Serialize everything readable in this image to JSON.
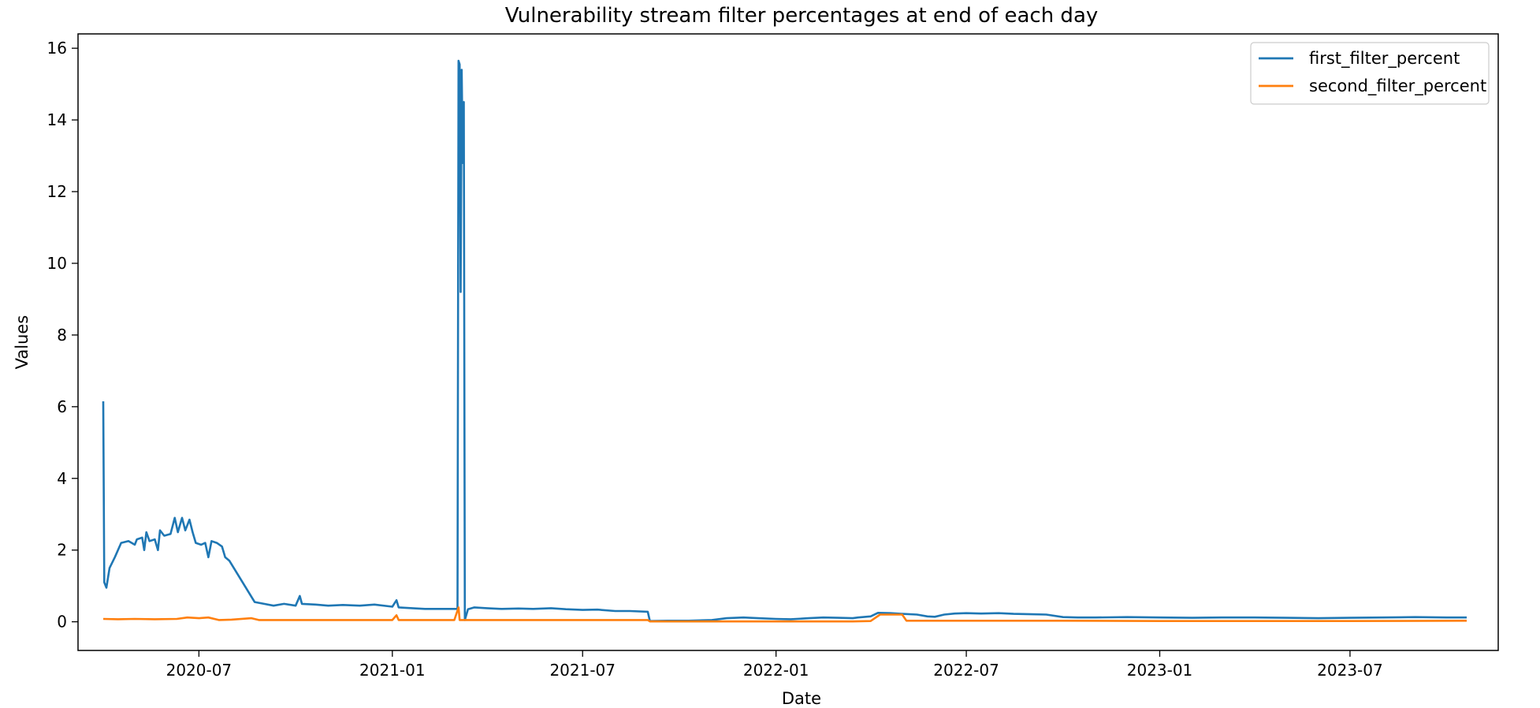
{
  "chart_data": {
    "type": "line",
    "title": "Vulnerability stream filter percentages at end of each day",
    "xlabel": "Date",
    "ylabel": "Values",
    "x_axis_type": "date",
    "xlim": [
      "2020-03-08",
      "2023-11-19"
    ],
    "ylim": [
      -0.8,
      16.4
    ],
    "x_ticks": [
      {
        "date": "2020-07-01",
        "label": "2020-07"
      },
      {
        "date": "2021-01-01",
        "label": "2021-01"
      },
      {
        "date": "2021-07-01",
        "label": "2021-07"
      },
      {
        "date": "2022-01-01",
        "label": "2022-01"
      },
      {
        "date": "2022-07-01",
        "label": "2022-07"
      },
      {
        "date": "2023-01-01",
        "label": "2023-01"
      },
      {
        "date": "2023-07-01",
        "label": "2023-07"
      }
    ],
    "y_ticks": [
      0,
      2,
      4,
      6,
      8,
      10,
      12,
      14,
      16
    ],
    "grid": false,
    "legend_position": "top-right",
    "colors": {
      "first_filter_percent": "#1f77b4",
      "second_filter_percent": "#ff7f0e"
    },
    "series": [
      {
        "name": "first_filter_percent",
        "points": [
          [
            "2020-04-01",
            6.15
          ],
          [
            "2020-04-02",
            1.1
          ],
          [
            "2020-04-04",
            0.95
          ],
          [
            "2020-04-07",
            1.5
          ],
          [
            "2020-04-12",
            1.8
          ],
          [
            "2020-04-18",
            2.2
          ],
          [
            "2020-04-25",
            2.25
          ],
          [
            "2020-05-01",
            2.15
          ],
          [
            "2020-05-03",
            2.3
          ],
          [
            "2020-05-08",
            2.35
          ],
          [
            "2020-05-10",
            2.0
          ],
          [
            "2020-05-12",
            2.5
          ],
          [
            "2020-05-15",
            2.25
          ],
          [
            "2020-05-20",
            2.3
          ],
          [
            "2020-05-23",
            2.0
          ],
          [
            "2020-05-25",
            2.55
          ],
          [
            "2020-05-29",
            2.4
          ],
          [
            "2020-06-04",
            2.45
          ],
          [
            "2020-06-08",
            2.9
          ],
          [
            "2020-06-11",
            2.5
          ],
          [
            "2020-06-15",
            2.9
          ],
          [
            "2020-06-18",
            2.55
          ],
          [
            "2020-06-22",
            2.85
          ],
          [
            "2020-06-25",
            2.5
          ],
          [
            "2020-06-28",
            2.2
          ],
          [
            "2020-07-03",
            2.15
          ],
          [
            "2020-07-07",
            2.2
          ],
          [
            "2020-07-10",
            1.8
          ],
          [
            "2020-07-13",
            2.25
          ],
          [
            "2020-07-18",
            2.2
          ],
          [
            "2020-07-23",
            2.1
          ],
          [
            "2020-07-26",
            1.8
          ],
          [
            "2020-07-30",
            1.7
          ],
          [
            "2020-08-23",
            0.55
          ],
          [
            "2020-09-01",
            0.5
          ],
          [
            "2020-09-10",
            0.45
          ],
          [
            "2020-09-20",
            0.5
          ],
          [
            "2020-10-01",
            0.45
          ],
          [
            "2020-10-05",
            0.72
          ],
          [
            "2020-10-07",
            0.5
          ],
          [
            "2020-10-20",
            0.48
          ],
          [
            "2020-11-01",
            0.45
          ],
          [
            "2020-11-15",
            0.47
          ],
          [
            "2020-12-01",
            0.45
          ],
          [
            "2020-12-15",
            0.48
          ],
          [
            "2021-01-01",
            0.42
          ],
          [
            "2021-01-05",
            0.6
          ],
          [
            "2021-01-07",
            0.4
          ],
          [
            "2021-01-20",
            0.38
          ],
          [
            "2021-02-01",
            0.36
          ],
          [
            "2021-02-15",
            0.36
          ],
          [
            "2021-03-01",
            0.36
          ],
          [
            "2021-03-04",
            0.36
          ],
          [
            "2021-03-05",
            15.65
          ],
          [
            "2021-03-06",
            15.55
          ],
          [
            "2021-03-07",
            9.2
          ],
          [
            "2021-03-08",
            15.4
          ],
          [
            "2021-03-09",
            12.8
          ],
          [
            "2021-03-10",
            14.5
          ],
          [
            "2021-03-11",
            0.05
          ],
          [
            "2021-03-14",
            0.35
          ],
          [
            "2021-03-20",
            0.4
          ],
          [
            "2021-04-01",
            0.38
          ],
          [
            "2021-04-15",
            0.36
          ],
          [
            "2021-05-01",
            0.37
          ],
          [
            "2021-05-15",
            0.36
          ],
          [
            "2021-06-01",
            0.38
          ],
          [
            "2021-06-15",
            0.35
          ],
          [
            "2021-07-01",
            0.33
          ],
          [
            "2021-07-15",
            0.34
          ],
          [
            "2021-08-01",
            0.3
          ],
          [
            "2021-08-15",
            0.3
          ],
          [
            "2021-09-01",
            0.28
          ],
          [
            "2021-09-03",
            0.02
          ],
          [
            "2021-09-20",
            0.03
          ],
          [
            "2021-10-10",
            0.03
          ],
          [
            "2021-11-01",
            0.05
          ],
          [
            "2021-11-15",
            0.1
          ],
          [
            "2021-12-01",
            0.12
          ],
          [
            "2021-12-15",
            0.1
          ],
          [
            "2022-01-01",
            0.08
          ],
          [
            "2022-01-15",
            0.07
          ],
          [
            "2022-02-01",
            0.1
          ],
          [
            "2022-02-15",
            0.12
          ],
          [
            "2022-03-01",
            0.11
          ],
          [
            "2022-03-15",
            0.1
          ],
          [
            "2022-03-20",
            0.12
          ],
          [
            "2022-04-01",
            0.15
          ],
          [
            "2022-04-08",
            0.25
          ],
          [
            "2022-04-20",
            0.24
          ],
          [
            "2022-05-01",
            0.22
          ],
          [
            "2022-05-15",
            0.2
          ],
          [
            "2022-05-25",
            0.15
          ],
          [
            "2022-06-01",
            0.14
          ],
          [
            "2022-06-10",
            0.2
          ],
          [
            "2022-06-20",
            0.23
          ],
          [
            "2022-07-01",
            0.24
          ],
          [
            "2022-07-15",
            0.23
          ],
          [
            "2022-08-01",
            0.24
          ],
          [
            "2022-08-15",
            0.22
          ],
          [
            "2022-09-01",
            0.21
          ],
          [
            "2022-09-15",
            0.2
          ],
          [
            "2022-10-01",
            0.13
          ],
          [
            "2022-10-15",
            0.12
          ],
          [
            "2022-11-01",
            0.12
          ],
          [
            "2022-12-01",
            0.13
          ],
          [
            "2023-01-01",
            0.12
          ],
          [
            "2023-02-01",
            0.11
          ],
          [
            "2023-03-01",
            0.12
          ],
          [
            "2023-04-01",
            0.12
          ],
          [
            "2023-05-01",
            0.11
          ],
          [
            "2023-06-01",
            0.1
          ],
          [
            "2023-07-01",
            0.11
          ],
          [
            "2023-08-01",
            0.12
          ],
          [
            "2023-09-01",
            0.13
          ],
          [
            "2023-10-01",
            0.12
          ],
          [
            "2023-10-20",
            0.12
          ]
        ]
      },
      {
        "name": "second_filter_percent",
        "points": [
          [
            "2020-04-01",
            0.08
          ],
          [
            "2020-04-15",
            0.07
          ],
          [
            "2020-05-01",
            0.08
          ],
          [
            "2020-05-20",
            0.07
          ],
          [
            "2020-06-10",
            0.08
          ],
          [
            "2020-06-20",
            0.12
          ],
          [
            "2020-07-01",
            0.1
          ],
          [
            "2020-07-10",
            0.12
          ],
          [
            "2020-07-20",
            0.05
          ],
          [
            "2020-08-01",
            0.06
          ],
          [
            "2020-08-20",
            0.1
          ],
          [
            "2020-08-27",
            0.05
          ],
          [
            "2020-10-01",
            0.05
          ],
          [
            "2020-12-01",
            0.05
          ],
          [
            "2021-01-01",
            0.05
          ],
          [
            "2021-01-05",
            0.18
          ],
          [
            "2021-01-07",
            0.05
          ],
          [
            "2021-03-01",
            0.05
          ],
          [
            "2021-03-05",
            0.4
          ],
          [
            "2021-03-06",
            0.05
          ],
          [
            "2021-06-01",
            0.05
          ],
          [
            "2021-09-01",
            0.05
          ],
          [
            "2021-09-03",
            0.01
          ],
          [
            "2022-01-01",
            0.01
          ],
          [
            "2022-03-15",
            0.01
          ],
          [
            "2022-04-01",
            0.02
          ],
          [
            "2022-04-10",
            0.2
          ],
          [
            "2022-05-01",
            0.2
          ],
          [
            "2022-05-05",
            0.03
          ],
          [
            "2022-07-01",
            0.03
          ],
          [
            "2022-10-01",
            0.03
          ],
          [
            "2023-01-01",
            0.02
          ],
          [
            "2023-07-01",
            0.02
          ],
          [
            "2023-10-20",
            0.03
          ]
        ]
      }
    ]
  }
}
